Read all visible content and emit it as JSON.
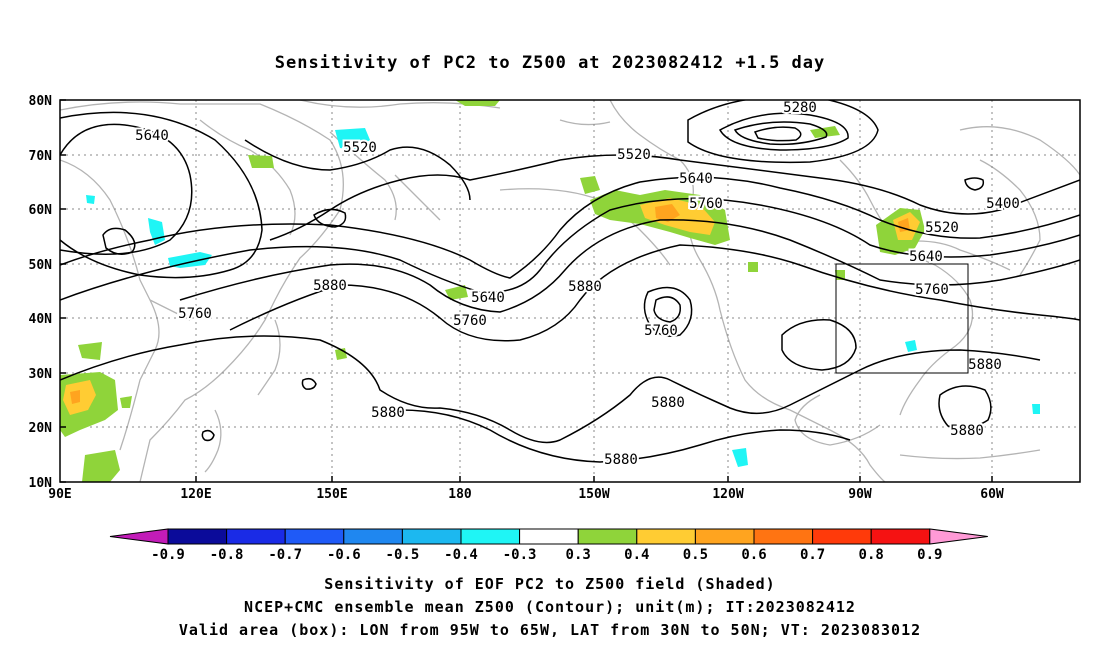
{
  "title": "Sensitivity of PC2 to Z500 at 2023082412 +1.5 day",
  "map": {
    "lat_ticks": [
      "80N",
      "70N",
      "60N",
      "50N",
      "40N",
      "30N",
      "20N",
      "10N"
    ],
    "lon_ticks": [
      "90E",
      "120E",
      "150E",
      "180",
      "150W",
      "120W",
      "90W",
      "60W"
    ],
    "contour_labels": [
      {
        "id": "c5640-w",
        "text": "5640"
      },
      {
        "id": "c5520-w",
        "text": "5520"
      },
      {
        "id": "c5280",
        "text": "5280"
      },
      {
        "id": "c5520-c",
        "text": "5520"
      },
      {
        "id": "c5640-c",
        "text": "5640"
      },
      {
        "id": "c5760-c",
        "text": "5760"
      },
      {
        "id": "c5400-e",
        "text": "5400"
      },
      {
        "id": "c5520-e",
        "text": "5520"
      },
      {
        "id": "c5640-e",
        "text": "5640"
      },
      {
        "id": "c5760-e",
        "text": "5760"
      },
      {
        "id": "c5880-e",
        "text": "5880"
      },
      {
        "id": "c5880-w",
        "text": "5880"
      },
      {
        "id": "c5760-w",
        "text": "5760"
      },
      {
        "id": "c5640-m",
        "text": "5640"
      },
      {
        "id": "c5760-m",
        "text": "5760"
      },
      {
        "id": "c5880-m",
        "text": "5880"
      },
      {
        "id": "c5760-low",
        "text": "5760"
      },
      {
        "id": "c5880-s",
        "text": "5880"
      },
      {
        "id": "c5880-sw",
        "text": "5880"
      },
      {
        "id": "c5880-b",
        "text": "5880"
      },
      {
        "id": "c5880-se",
        "text": "5880"
      }
    ],
    "valid_box": {
      "lon_from": "95W",
      "lon_to": "65W",
      "lat_from": "30N",
      "lat_to": "50N"
    }
  },
  "colorbar": {
    "labels": [
      "-0.9",
      "-0.8",
      "-0.7",
      "-0.6",
      "-0.5",
      "-0.4",
      "-0.3",
      "0.3",
      "0.4",
      "0.5",
      "0.6",
      "0.7",
      "0.8",
      "0.9"
    ],
    "colors": [
      "#0b0b9a",
      "#1a2be6",
      "#1f5af7",
      "#1f87f0",
      "#1cb8f0",
      "#1ff5f5",
      "#ffffff",
      "#8fd43a",
      "#ffcc33",
      "#ffa41f",
      "#ff7412",
      "#ff3a0a",
      "#f51212"
    ],
    "low_end_color": "#c21cb8",
    "high_end_color": "#ff9ad6"
  },
  "footer": {
    "line1": "Sensitivity of EOF PC2 to Z500 field (Shaded)",
    "line2": "NCEP+CMC ensemble mean Z500 (Contour); unit(m); IT:2023082412",
    "line3": "Valid area (box): LON from 95W to 65W, LAT from 30N to 50N; VT: 2023083012"
  }
}
